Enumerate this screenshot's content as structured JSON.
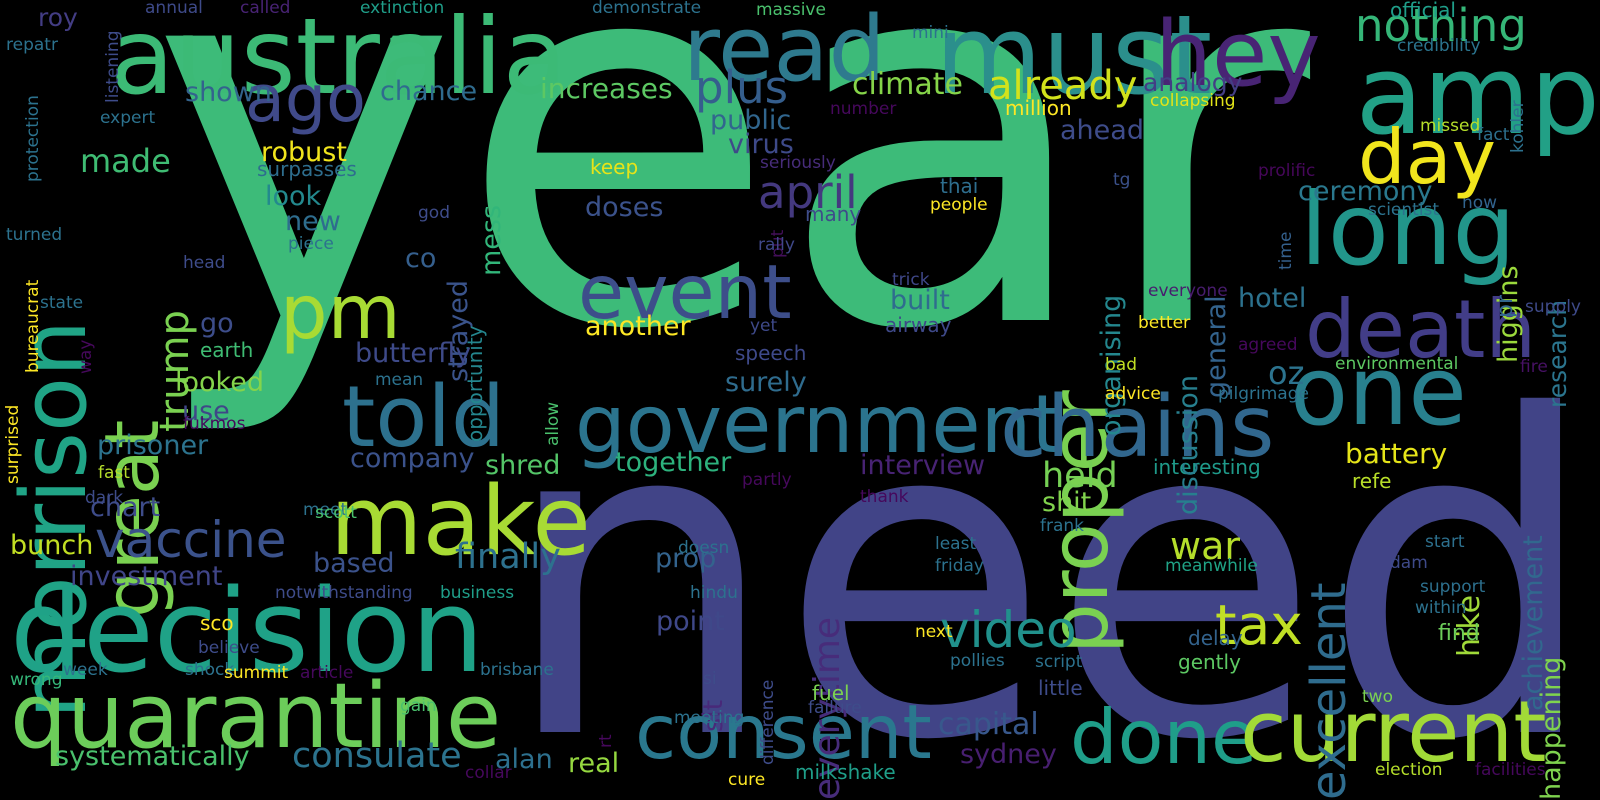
{
  "cloud": {
    "words": [
      {
        "text": "year",
        "color": "#3dbb79"
      },
      {
        "text": "need",
        "color": "#414487"
      },
      {
        "text": "australia",
        "color": "#3cba76"
      },
      {
        "text": "must",
        "color": "#2b8f8c"
      },
      {
        "text": "amp",
        "color": "#22a086"
      },
      {
        "text": "read",
        "color": "#2e7a8e"
      },
      {
        "text": "hey",
        "color": "#482474"
      },
      {
        "text": "nothing",
        "color": "#35b678"
      },
      {
        "text": "morrison",
        "color": "#20a486"
      },
      {
        "text": "ago",
        "color": "#404a8a"
      },
      {
        "text": "great",
        "color": "#7ad151"
      },
      {
        "text": "long",
        "color": "#22968b"
      },
      {
        "text": "day",
        "color": "#f1e51d"
      },
      {
        "text": "death",
        "color": "#423d88"
      },
      {
        "text": "proper",
        "color": "#7ad151"
      },
      {
        "text": "pm",
        "color": "#a8db34"
      },
      {
        "text": "event",
        "color": "#3d4e8a"
      },
      {
        "text": "april",
        "color": "#44397f"
      },
      {
        "text": "one",
        "color": "#28808e"
      },
      {
        "text": "told",
        "color": "#2d718e"
      },
      {
        "text": "government",
        "color": "#2b748e"
      },
      {
        "text": "chains",
        "color": "#31678e"
      },
      {
        "text": "make",
        "color": "#a8db34"
      },
      {
        "text": "decision",
        "color": "#1fa287"
      },
      {
        "text": "quarantine",
        "color": "#6ccd5a"
      },
      {
        "text": "consent",
        "color": "#2a788e"
      },
      {
        "text": "done",
        "color": "#1f9e89"
      },
      {
        "text": "current",
        "color": "#a2da37"
      },
      {
        "text": "video",
        "color": "#21918c"
      },
      {
        "text": "tax",
        "color": "#c0df25"
      },
      {
        "text": "vaccine",
        "color": "#3b528b"
      },
      {
        "text": "trump",
        "color": "#7ad151"
      },
      {
        "text": "plus",
        "color": "#355e8d"
      },
      {
        "text": "already",
        "color": "#d2e21b"
      },
      {
        "text": "climate",
        "color": "#86d549"
      },
      {
        "text": "increases",
        "color": "#5dc863"
      },
      {
        "text": "made",
        "color": "#3fbc73"
      },
      {
        "text": "chance",
        "color": "#2f6b8e"
      },
      {
        "text": "shown",
        "color": "#33638d"
      },
      {
        "text": "roy",
        "color": "#433d84"
      },
      {
        "text": "excellent",
        "color": "#2f6c8e"
      },
      {
        "text": "everytime",
        "color": "#472c7a"
      },
      {
        "text": "war",
        "color": "#b5de2b"
      },
      {
        "text": "held",
        "color": "#75d054"
      },
      {
        "text": "hotel",
        "color": "#2c728e"
      },
      {
        "text": "oz",
        "color": "#2c738e"
      },
      {
        "text": "battery",
        "color": "#e5e419"
      },
      {
        "text": "ceremony",
        "color": "#2a788e"
      },
      {
        "text": "research",
        "color": "#2b758e"
      },
      {
        "text": "higgins",
        "color": "#9bd93c"
      },
      {
        "text": "hike",
        "color": "#a0da39"
      },
      {
        "text": "achievement",
        "color": "#31688e"
      },
      {
        "text": "happening",
        "color": "#7fd34e"
      },
      {
        "text": "capital",
        "color": "#38588c"
      },
      {
        "text": "sydney",
        "color": "#481f70"
      },
      {
        "text": "alan",
        "color": "#2d708e"
      },
      {
        "text": "real",
        "color": "#95d840"
      },
      {
        "text": "systematically",
        "color": "#4ac16d"
      },
      {
        "text": "consulate",
        "color": "#2c738e"
      },
      {
        "text": "finally",
        "color": "#2d718e"
      },
      {
        "text": "investment",
        "color": "#404588"
      },
      {
        "text": "bunch",
        "color": "#c2df23"
      },
      {
        "text": "chart",
        "color": "#3e4c8a"
      },
      {
        "text": "prisoner",
        "color": "#2c738e"
      },
      {
        "text": "looked",
        "color": "#84d44b"
      },
      {
        "text": "use",
        "color": "#3f4788"
      },
      {
        "text": "go",
        "color": "#3d4d8a"
      },
      {
        "text": "co",
        "color": "#355f8d"
      },
      {
        "text": "look",
        "color": "#23898e"
      },
      {
        "text": "new",
        "color": "#2e6d8e"
      },
      {
        "text": "robust",
        "color": "#f1e51d"
      },
      {
        "text": "surpasses",
        "color": "#2e6e8e"
      },
      {
        "text": "strayed",
        "color": "#3a538b"
      },
      {
        "text": "mess",
        "color": "#32b67a"
      },
      {
        "text": "opportunity",
        "color": "#24868e"
      },
      {
        "text": "butterfly",
        "color": "#3e4a89"
      },
      {
        "text": "surely",
        "color": "#2f6c8e"
      },
      {
        "text": "built",
        "color": "#2f6c8e"
      },
      {
        "text": "another",
        "color": "#fde725"
      },
      {
        "text": "doses",
        "color": "#3b528b"
      },
      {
        "text": "virus",
        "color": "#3e4a89"
      },
      {
        "text": "public",
        "color": "#31668e"
      },
      {
        "text": "company",
        "color": "#3b528b"
      },
      {
        "text": "shred",
        "color": "#54c568"
      },
      {
        "text": "together",
        "color": "#2db27d"
      },
      {
        "text": "interview",
        "color": "#482374"
      },
      {
        "text": "sit",
        "color": "#482979"
      },
      {
        "text": "prop",
        "color": "#33638d"
      },
      {
        "text": "point",
        "color": "#3f4889"
      },
      {
        "text": "based",
        "color": "#3b528b"
      },
      {
        "text": "shit",
        "color": "#81d34d"
      },
      {
        "text": "interesting",
        "color": "#1f9a8a"
      },
      {
        "text": "refe",
        "color": "#b8de29"
      },
      {
        "text": "general",
        "color": "#33638d"
      },
      {
        "text": "discussion",
        "color": "#277f8e"
      },
      {
        "text": "organising",
        "color": "#24878e"
      },
      {
        "text": "ahead",
        "color": "#3e4c8a"
      },
      {
        "text": "analogy",
        "color": "#433e85"
      },
      {
        "text": "million",
        "color": "#fde725"
      },
      {
        "text": "collapsing",
        "color": "#e2e418"
      },
      {
        "text": "kohler",
        "color": "#2c718e"
      },
      {
        "text": "credibility",
        "color": "#2b748e"
      },
      {
        "text": "official",
        "color": "#1f9e89"
      },
      {
        "text": "missed",
        "color": "#b5de2b"
      },
      {
        "text": "fact",
        "color": "#2d708e"
      },
      {
        "text": "prolific",
        "color": "#46075a"
      },
      {
        "text": "now",
        "color": "#32648e"
      },
      {
        "text": "scientist",
        "color": "#2c728e"
      },
      {
        "text": "time",
        "color": "#34608d"
      },
      {
        "text": "pr",
        "color": "#32658e"
      },
      {
        "text": "tg",
        "color": "#3b518b"
      },
      {
        "text": "thai",
        "color": "#2e6e8e"
      },
      {
        "text": "people",
        "color": "#fde725"
      },
      {
        "text": "many",
        "color": "#3e4c8a"
      },
      {
        "text": "put",
        "color": "#440f5a"
      },
      {
        "text": "seriously",
        "color": "#472c7a"
      },
      {
        "text": "keep",
        "color": "#e7e419"
      },
      {
        "text": "rally",
        "color": "#3f4889"
      },
      {
        "text": "trick",
        "color": "#3f4788"
      },
      {
        "text": "airway",
        "color": "#3e4989"
      },
      {
        "text": "everyone",
        "color": "#481c6e"
      },
      {
        "text": "better",
        "color": "#fde725"
      },
      {
        "text": "agreed",
        "color": "#46085c"
      },
      {
        "text": "yet",
        "color": "#3e4989"
      },
      {
        "text": "speech",
        "color": "#3e4989"
      },
      {
        "text": "bad",
        "color": "#c2df23"
      },
      {
        "text": "advice",
        "color": "#fde725"
      },
      {
        "text": "pilgrimage",
        "color": "#2c728e"
      },
      {
        "text": "environmental",
        "color": "#5ec962"
      },
      {
        "text": "fire",
        "color": "#471164"
      },
      {
        "text": "supply",
        "color": "#3e4a89"
      },
      {
        "text": "start",
        "color": "#2d708e"
      },
      {
        "text": "dam",
        "color": "#3e4a89"
      },
      {
        "text": "support",
        "color": "#2d708e"
      },
      {
        "text": "within",
        "color": "#2c728e"
      },
      {
        "text": "find",
        "color": "#6ccd5a"
      },
      {
        "text": "meanwhile",
        "color": "#20a386"
      },
      {
        "text": "delay",
        "color": "#33638d"
      },
      {
        "text": "gently",
        "color": "#5dc863"
      },
      {
        "text": "two",
        "color": "#7ad151"
      },
      {
        "text": "election",
        "color": "#b5de2b"
      },
      {
        "text": "facilities",
        "color": "#46085c"
      },
      {
        "text": "annual",
        "color": "#3e4a89"
      },
      {
        "text": "called",
        "color": "#482374"
      },
      {
        "text": "extinction",
        "color": "#1f9e89"
      },
      {
        "text": "demonstrate",
        "color": "#2c728e"
      },
      {
        "text": "massive",
        "color": "#4ac16d"
      },
      {
        "text": "mini",
        "color": "#2c728e"
      },
      {
        "text": "repatr",
        "color": "#2c728e"
      },
      {
        "text": "listening",
        "color": "#3e4c8a"
      },
      {
        "text": "expert",
        "color": "#2c728e"
      },
      {
        "text": "protection",
        "color": "#2c728e"
      },
      {
        "text": "turned",
        "color": "#2c728e"
      },
      {
        "text": "head",
        "color": "#3e4c8a"
      },
      {
        "text": "state",
        "color": "#2c728e"
      },
      {
        "text": "bureaucrat",
        "color": "#fde725"
      },
      {
        "text": "surprised",
        "color": "#fde725"
      },
      {
        "text": "way",
        "color": "#46085c"
      },
      {
        "text": "god",
        "color": "#3e4c8a"
      },
      {
        "text": "piece",
        "color": "#2c728e"
      },
      {
        "text": "earth",
        "color": "#3fbc73"
      },
      {
        "text": "mean",
        "color": "#2c728e"
      },
      {
        "text": "fukmos",
        "color": "#46085c"
      },
      {
        "text": "fast",
        "color": "#b5de2b"
      },
      {
        "text": "dark",
        "color": "#3e4c8a"
      },
      {
        "text": "meet",
        "color": "#2c728e"
      },
      {
        "text": "scott",
        "color": "#4ac16d"
      },
      {
        "text": "allow",
        "color": "#4ac16d"
      },
      {
        "text": "notwithstanding",
        "color": "#3e4c8a"
      },
      {
        "text": "business",
        "color": "#1f9e89"
      },
      {
        "text": "sco",
        "color": "#fde725"
      },
      {
        "text": "believe",
        "color": "#3e4c8a"
      },
      {
        "text": "wrong",
        "color": "#35b779"
      },
      {
        "text": "week",
        "color": "#2c728e"
      },
      {
        "text": "shock",
        "color": "#2c728e"
      },
      {
        "text": "summit",
        "color": "#fde725"
      },
      {
        "text": "article",
        "color": "#46085c"
      },
      {
        "text": "brisbane",
        "color": "#2c728e"
      },
      {
        "text": "gain",
        "color": "#4ac16d"
      },
      {
        "text": "rt",
        "color": "#46085c"
      },
      {
        "text": "collar",
        "color": "#46085c"
      },
      {
        "text": "cure",
        "color": "#fde725"
      },
      {
        "text": "milkshake",
        "color": "#1f9e89"
      },
      {
        "text": "meeting",
        "color": "#2c728e"
      },
      {
        "text": "fuel",
        "color": "#7ad151"
      },
      {
        "text": "failure",
        "color": "#3e4c8a"
      },
      {
        "text": "si",
        "color": "#3e4c8a"
      },
      {
        "text": "difference",
        "color": "#3e4c8a"
      },
      {
        "text": "hindu",
        "color": "#2c728e"
      },
      {
        "text": "doesn",
        "color": "#2c728e"
      },
      {
        "text": "thank",
        "color": "#46085c"
      },
      {
        "text": "partly",
        "color": "#46085c"
      },
      {
        "text": "least",
        "color": "#2c728e"
      },
      {
        "text": "friday",
        "color": "#2c728e"
      },
      {
        "text": "next",
        "color": "#fde725"
      },
      {
        "text": "pollies",
        "color": "#2c728e"
      },
      {
        "text": "script",
        "color": "#2c728e"
      },
      {
        "text": "little",
        "color": "#3e4c8a"
      },
      {
        "text": "frank",
        "color": "#2c728e"
      },
      {
        "text": "number",
        "color": "#46085c"
      }
    ]
  }
}
